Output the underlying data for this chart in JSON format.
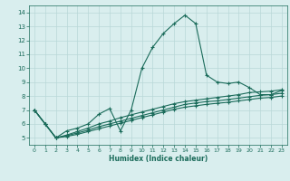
{
  "xlabel": "Humidex (Indice chaleur)",
  "x": [
    0,
    1,
    2,
    3,
    4,
    5,
    6,
    7,
    8,
    9,
    10,
    11,
    12,
    13,
    14,
    15,
    16,
    17,
    18,
    19,
    20,
    21,
    22,
    23
  ],
  "series1": [
    7.0,
    6.0,
    5.0,
    5.5,
    5.7,
    6.0,
    6.7,
    7.1,
    5.5,
    7.0,
    10.0,
    11.5,
    12.5,
    13.2,
    13.8,
    13.2,
    9.5,
    9.0,
    8.9,
    9.0,
    8.6,
    8.1,
    8.1,
    8.4
  ],
  "series2": [
    7.0,
    6.0,
    5.0,
    5.2,
    5.45,
    5.7,
    6.0,
    6.2,
    6.45,
    6.65,
    6.85,
    7.05,
    7.25,
    7.45,
    7.6,
    7.7,
    7.8,
    7.9,
    8.0,
    8.1,
    8.25,
    8.3,
    8.35,
    8.45
  ],
  "series3": [
    7.0,
    6.0,
    5.0,
    5.15,
    5.35,
    5.55,
    5.8,
    6.0,
    6.2,
    6.4,
    6.6,
    6.8,
    7.0,
    7.2,
    7.4,
    7.5,
    7.6,
    7.65,
    7.75,
    7.85,
    7.95,
    8.05,
    8.1,
    8.2
  ],
  "series4": [
    7.0,
    6.0,
    5.0,
    5.1,
    5.25,
    5.45,
    5.65,
    5.85,
    6.05,
    6.25,
    6.45,
    6.65,
    6.85,
    7.05,
    7.2,
    7.3,
    7.4,
    7.48,
    7.55,
    7.65,
    7.75,
    7.85,
    7.9,
    8.0
  ],
  "line_color": "#1a6b5a",
  "bg_color": "#d9eeee",
  "grid_color": "#b8d8d8",
  "ylim": [
    4.5,
    14.5
  ],
  "xlim": [
    -0.5,
    23.5
  ],
  "yticks": [
    5,
    6,
    7,
    8,
    9,
    10,
    11,
    12,
    13,
    14
  ]
}
